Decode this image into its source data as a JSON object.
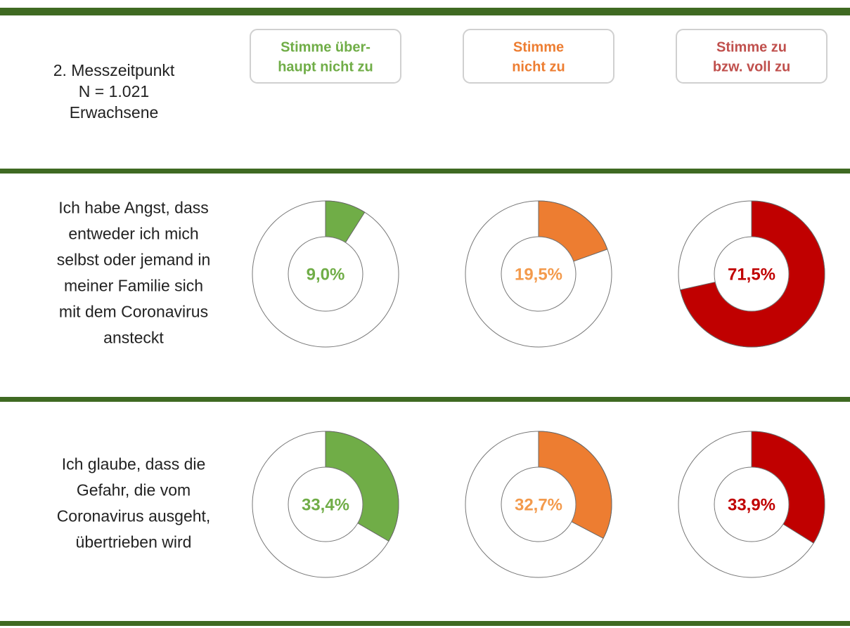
{
  "chart_data": {
    "type": "donut",
    "title_lines": [
      "2. Messzeitpunkt",
      "N = 1.021",
      "Erwachsene"
    ],
    "columns": [
      {
        "lines": [
          "Stimme über-",
          "haupt nicht zu"
        ],
        "color": "#70ad47",
        "label_color": "#70ad47",
        "header_color": "#70ad47"
      },
      {
        "lines": [
          "Stimme",
          "nicht zu"
        ],
        "color": "#ed7d31",
        "label_color": "#f39a4c",
        "header_color": "#ed7d31"
      },
      {
        "lines": [
          "Stimme zu",
          "bzw. voll zu"
        ],
        "color": "#c00000",
        "label_color": "#c00000",
        "header_color": "#c0504d"
      }
    ],
    "rows": [
      {
        "lines": [
          "Ich habe Angst, dass",
          "entweder ich mich",
          "selbst oder jemand in",
          "meiner Familie sich",
          "mit dem Coronavirus",
          "ansteckt"
        ],
        "values": [
          9.0,
          19.5,
          71.5
        ],
        "value_labels": [
          "9,0%",
          "19,5%",
          "71,5%"
        ]
      },
      {
        "lines": [
          "Ich glaube, dass die",
          "Gefahr, die vom",
          "Coronavirus ausgeht,",
          "übertrieben wird"
        ],
        "values": [
          33.4,
          32.7,
          33.9
        ],
        "value_labels": [
          "33,4%",
          "32,7%",
          "33,9%"
        ]
      }
    ]
  }
}
